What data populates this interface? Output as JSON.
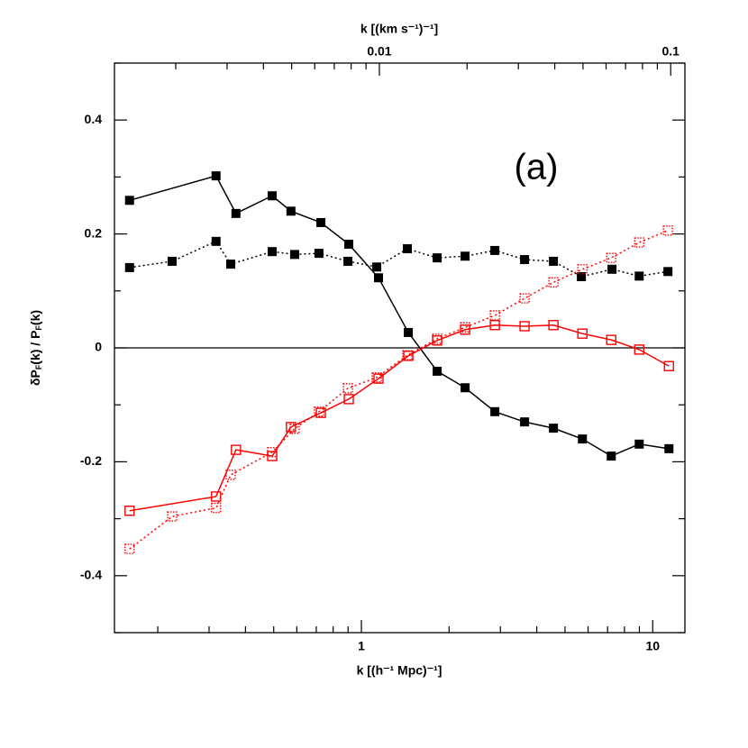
{
  "chart_data": {
    "type": "line",
    "xscale": "log",
    "xlim": [
      0.142,
      12.9
    ],
    "xticks": [
      1,
      10
    ],
    "xminorticks": [
      0.2,
      0.3,
      0.4,
      0.5,
      0.6,
      0.7,
      0.8,
      0.9,
      2,
      3,
      4,
      5,
      6,
      7,
      8,
      9
    ],
    "x2lim": [
      0.001232,
      0.1119
    ],
    "x2ticks": [
      0.01,
      0.1
    ],
    "x2minorticks": [
      0.002,
      0.003,
      0.004,
      0.005,
      0.006,
      0.007,
      0.008,
      0.009,
      0.02,
      0.03,
      0.04,
      0.05,
      0.06,
      0.07,
      0.08,
      0.09
    ],
    "ylim": [
      -0.5,
      0.5
    ],
    "yticks": [
      -0.4,
      -0.2,
      0,
      0.2,
      0.4
    ],
    "yminorticks": [
      -0.5,
      -0.3,
      -0.1,
      0.1,
      0.3,
      0.5
    ],
    "hlines": [
      0
    ],
    "xlabel": "k [(h⁻¹ Mpc)⁻¹]",
    "x2label": "k [(km s⁻¹)⁻¹]",
    "ylabel": [
      "δP",
      "F",
      "(k) / P",
      "F",
      "(k)"
    ],
    "annotation": "(a)",
    "series": [
      {
        "color": "#000000",
        "dash": "solid",
        "marker": "filled",
        "x": [
          0.16,
          0.317,
          0.371,
          0.494,
          0.573,
          0.726,
          0.905,
          1.145,
          1.449,
          1.82,
          2.27,
          2.872,
          3.632,
          4.563,
          5.737,
          7.206,
          8.989,
          11.37
        ],
        "values": [
          0.259,
          0.302,
          0.236,
          0.267,
          0.24,
          0.22,
          0.182,
          0.123,
          0.027,
          -0.041,
          -0.07,
          -0.112,
          -0.13,
          -0.141,
          -0.16,
          -0.19,
          -0.169,
          -0.177
        ]
      },
      {
        "color": "#000000",
        "dash": "dotted",
        "marker": "filled",
        "x": [
          0.16,
          0.224,
          0.317,
          0.356,
          0.494,
          0.59,
          0.715,
          0.899,
          1.129,
          1.438,
          1.82,
          2.27,
          2.872,
          3.632,
          4.563,
          5.69,
          7.25,
          8.989,
          11.28
        ],
        "values": [
          0.141,
          0.152,
          0.187,
          0.147,
          0.169,
          0.164,
          0.166,
          0.152,
          0.142,
          0.174,
          0.158,
          0.161,
          0.171,
          0.155,
          0.152,
          0.125,
          0.138,
          0.126,
          0.134
        ]
      },
      {
        "color": "#ff0000",
        "dash": "solid",
        "marker": "open",
        "x": [
          0.16,
          0.317,
          0.371,
          0.494,
          0.573,
          0.726,
          0.905,
          1.145,
          1.449,
          1.82,
          2.27,
          2.872,
          3.632,
          4.563,
          5.737,
          7.206,
          8.989,
          11.37
        ],
        "values": [
          -0.286,
          -0.261,
          -0.179,
          -0.19,
          -0.139,
          -0.114,
          -0.09,
          -0.054,
          -0.014,
          0.013,
          0.032,
          0.04,
          0.038,
          0.04,
          0.025,
          0.014,
          -0.003,
          -0.032
        ]
      },
      {
        "color": "#ff0000",
        "dash": "dotted",
        "marker": "open-dotted",
        "x": [
          0.16,
          0.224,
          0.317,
          0.356,
          0.494,
          0.59,
          0.715,
          0.899,
          1.129,
          1.438,
          1.82,
          2.27,
          2.872,
          3.632,
          4.563,
          5.737,
          7.206,
          8.989,
          11.28
        ],
        "values": [
          -0.353,
          -0.296,
          -0.281,
          -0.223,
          -0.183,
          -0.142,
          -0.112,
          -0.071,
          -0.052,
          -0.013,
          0.016,
          0.036,
          0.057,
          0.087,
          0.115,
          0.138,
          0.158,
          0.185,
          0.206
        ]
      }
    ]
  }
}
